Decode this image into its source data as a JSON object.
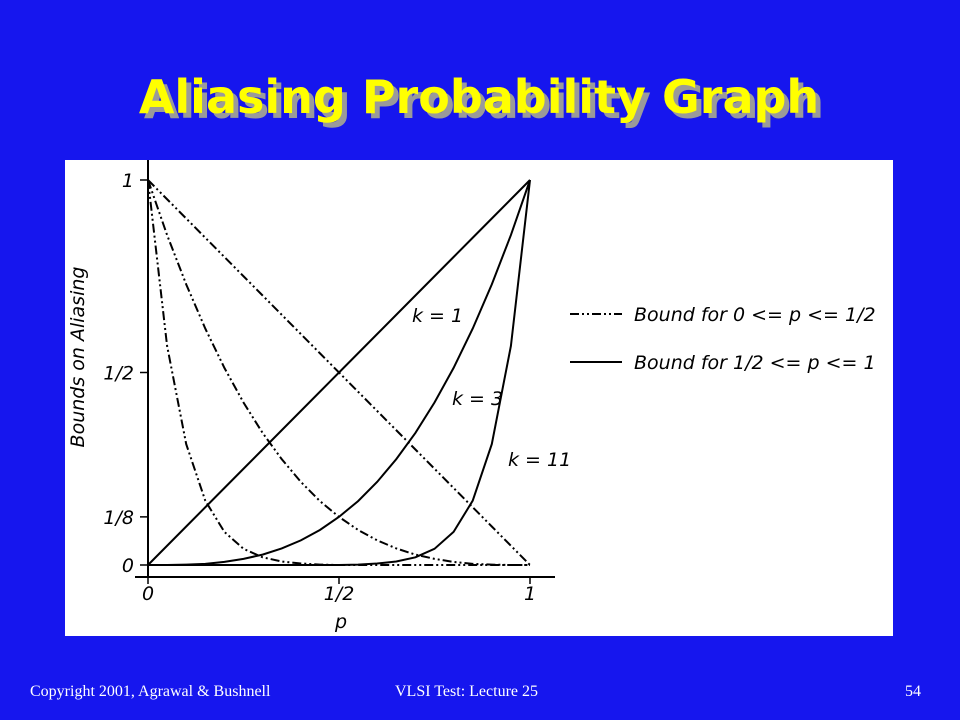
{
  "slide": {
    "title": "Aliasing Probability Graph",
    "footer": {
      "left": "Copyright 2001, Agrawal & Bushnell",
      "center": "VLSI Test: Lecture 25",
      "right": "54"
    }
  },
  "chart_data": {
    "type": "line",
    "x_label": "p",
    "y_label": "Bounds on Aliasing",
    "x": [
      0,
      0.05,
      0.1,
      0.15,
      0.2,
      0.25,
      0.3,
      0.35,
      0.4,
      0.45,
      0.5,
      0.55,
      0.6,
      0.65,
      0.7,
      0.75,
      0.8,
      0.85,
      0.9,
      0.95,
      1
    ],
    "series": [
      {
        "style": "dash-dot-dot",
        "color": "#000000",
        "values": [
          1,
          0.95,
          0.9,
          0.85,
          0.8,
          0.75,
          0.7,
          0.65,
          0.6,
          0.55,
          0.5,
          0.45,
          0.4,
          0.35,
          0.3,
          0.25,
          0.2,
          0.15,
          0.1,
          0.05,
          0
        ]
      },
      {
        "style": "dash-dot-dot",
        "color": "#000000",
        "values": [
          1,
          0.857,
          0.729,
          0.614,
          0.512,
          0.422,
          0.343,
          0.275,
          0.216,
          0.166,
          0.125,
          0.091,
          0.064,
          0.043,
          0.027,
          0.016,
          0.008,
          0.003,
          0.001,
          0,
          0
        ]
      },
      {
        "style": "dash-dot-dot",
        "color": "#000000",
        "values": [
          1,
          0.569,
          0.314,
          0.167,
          0.086,
          0.042,
          0.02,
          0.009,
          0.004,
          0.001,
          0,
          0,
          0,
          0,
          0,
          0,
          0,
          0,
          0,
          0,
          0
        ]
      },
      {
        "name": "k = 1",
        "style": "solid",
        "color": "#000000",
        "values": [
          0,
          0.05,
          0.1,
          0.15,
          0.2,
          0.25,
          0.3,
          0.35,
          0.4,
          0.45,
          0.5,
          0.55,
          0.6,
          0.65,
          0.7,
          0.75,
          0.8,
          0.85,
          0.9,
          0.95,
          1
        ]
      },
      {
        "name": "k = 3",
        "style": "solid",
        "color": "#000000",
        "values": [
          0,
          0,
          0.001,
          0.003,
          0.008,
          0.016,
          0.027,
          0.043,
          0.064,
          0.091,
          0.125,
          0.166,
          0.216,
          0.275,
          0.343,
          0.422,
          0.512,
          0.614,
          0.729,
          0.857,
          1
        ]
      },
      {
        "name": "k = 11",
        "style": "solid",
        "color": "#000000",
        "values": [
          0,
          0,
          0,
          0,
          0,
          0,
          0,
          0,
          0,
          0,
          0,
          0.001,
          0.004,
          0.009,
          0.02,
          0.042,
          0.086,
          0.167,
          0.314,
          0.569,
          1
        ]
      }
    ],
    "legend": [
      {
        "label": "Bound for 0 <= p <= 1/2",
        "style": "dash-dot-dot"
      },
      {
        "label": "Bound for 1/2 <= p <= 1",
        "style": "solid"
      }
    ],
    "xlim": [
      0,
      1
    ],
    "xticks": [
      0,
      {
        "value": 0.5,
        "label": "1/2"
      },
      1
    ],
    "ylim": [
      0,
      1
    ],
    "yticks": [
      0,
      {
        "value": 0.125,
        "label": "1/8"
      },
      {
        "value": 0.5,
        "label": "1/2"
      },
      1
    ]
  }
}
